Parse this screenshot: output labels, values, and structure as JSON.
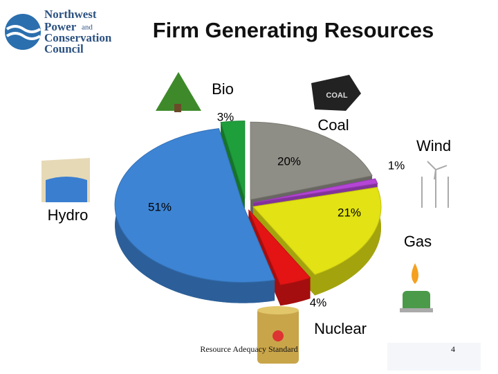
{
  "logo": {
    "line1": "Northwest",
    "line2": "Power",
    "line2_small": "and",
    "line3": "Conservation",
    "line4": "Council"
  },
  "chart_data": {
    "type": "pie",
    "title": "Firm Generating Resources",
    "categories": [
      "Bio",
      "Coal",
      "Wind",
      "Gas",
      "Nuclear",
      "Hydro"
    ],
    "values": [
      3,
      20,
      1,
      21,
      4,
      51
    ],
    "value_labels": [
      "3%",
      "20%",
      "1%",
      "21%",
      "4%",
      "51%"
    ],
    "colors": [
      "#1f9e3c",
      "#8f8e86",
      "#b545d6",
      "#e2e214",
      "#e41414",
      "#3d84d4"
    ]
  },
  "footer": "Resource Adequacy Standard",
  "page_number": "4"
}
